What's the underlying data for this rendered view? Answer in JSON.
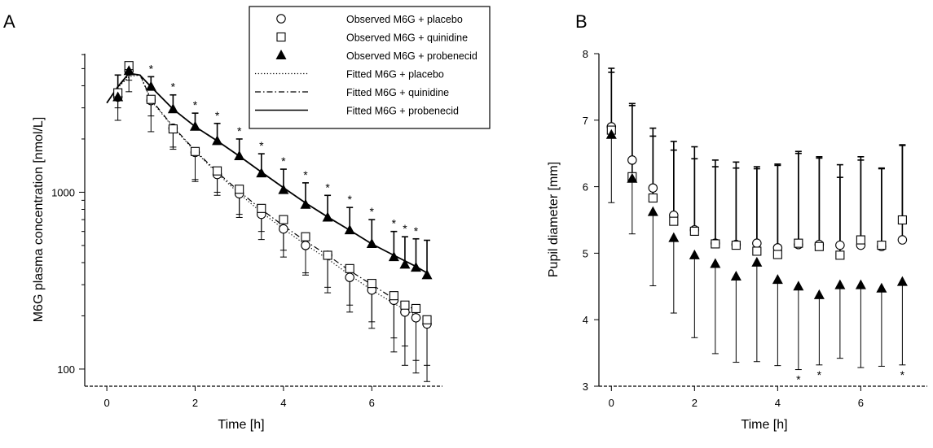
{
  "chart_data": [
    {
      "type": "scatter",
      "panel_label": "A",
      "xlabel": "Time [h]",
      "ylabel": "M6G  plasma  concentration  [nmol/L]",
      "xlim": [
        -0.5,
        7.6
      ],
      "ylim": [
        80,
        8000
      ],
      "yscale": "log",
      "xticks": [
        0,
        2,
        4,
        6
      ],
      "yticks": [
        100,
        1000
      ],
      "legend_position": "top",
      "legend": [
        "Observed  M6G + placebo",
        "Observed  M6G + quinidine",
        "Observed  M6G + probenecid",
        "Fitted M6G + placebo",
        "Fitted M6G + quinidine",
        "Fitted M6G + probenecid"
      ],
      "series": [
        {
          "marker": "circle",
          "x": [
            0.25,
            0.5,
            1.0,
            1.5,
            2.0,
            2.5,
            3.0,
            3.5,
            4.0,
            4.5,
            5.0,
            5.5,
            6.0,
            6.5,
            6.75,
            7.0,
            7.25
          ],
          "y": [
            3450,
            4850,
            3300,
            2300,
            1680,
            1260,
            980,
            750,
            620,
            500,
            440,
            330,
            280,
            245,
            210,
            195,
            180
          ],
          "err_low": [
            2550,
            3700,
            2200,
            1750,
            1180,
            960,
            720,
            540,
            430,
            340,
            290,
            230,
            185,
            150,
            135,
            112,
            105
          ]
        },
        {
          "marker": "square",
          "x": [
            0.25,
            0.5,
            1.0,
            1.5,
            2.0,
            2.5,
            3.0,
            3.5,
            4.0,
            4.5,
            5.0,
            5.5,
            6.0,
            6.5,
            6.75,
            7.0,
            7.25
          ],
          "y": [
            3650,
            5200,
            3350,
            2280,
            1700,
            1320,
            1040,
            810,
            700,
            560,
            440,
            370,
            305,
            260,
            230,
            220,
            190
          ],
          "err_low": [
            3000,
            4300,
            2700,
            1800,
            1150,
            1000,
            750,
            600,
            470,
            350,
            270,
            210,
            170,
            125,
            105,
            95,
            85
          ]
        },
        {
          "marker": "triangle",
          "x": [
            0.25,
            0.5,
            1.0,
            1.5,
            2.0,
            2.5,
            3.0,
            3.5,
            4.0,
            4.5,
            5.0,
            5.5,
            6.0,
            6.5,
            6.75,
            7.0,
            7.25
          ],
          "y": [
            3450,
            4850,
            3950,
            2950,
            2350,
            1950,
            1600,
            1280,
            1030,
            850,
            720,
            610,
            510,
            430,
            390,
            375,
            340
          ],
          "err_high": [
            4600,
            5300,
            4500,
            3550,
            2800,
            2450,
            2000,
            1650,
            1350,
            1130,
            960,
            820,
            700,
            600,
            560,
            545,
            535
          ],
          "significant": [
            false,
            false,
            true,
            true,
            true,
            true,
            true,
            true,
            true,
            true,
            true,
            true,
            true,
            true,
            true,
            true,
            false
          ]
        }
      ],
      "fitted": [
        {
          "style": "dotted",
          "x": [
            0,
            0.25,
            0.5,
            0.75,
            1.0,
            1.5,
            2.0,
            2.5,
            3.0,
            3.5,
            4.0,
            4.5,
            5.0,
            5.5,
            6.0,
            6.5,
            7.0
          ],
          "y": [
            3200,
            3900,
            4500,
            4600,
            3300,
            2330,
            1700,
            1280,
            980,
            770,
            620,
            505,
            420,
            340,
            280,
            235,
            200
          ]
        },
        {
          "style": "dash-dot",
          "x": [
            0,
            0.25,
            0.5,
            0.75,
            1.0,
            1.5,
            2.0,
            2.5,
            3.0,
            3.5,
            4.0,
            4.5,
            5.0,
            5.5,
            6.0,
            6.5,
            7.0
          ],
          "y": [
            3200,
            3950,
            4600,
            4650,
            3350,
            2350,
            1720,
            1300,
            1010,
            800,
            645,
            530,
            440,
            360,
            300,
            250,
            215
          ]
        },
        {
          "style": "solid",
          "x": [
            0,
            0.25,
            0.5,
            0.75,
            1.0,
            1.5,
            2.0,
            2.5,
            3.0,
            3.5,
            4.0,
            4.5,
            5.0,
            5.5,
            6.0,
            6.5,
            7.0,
            7.25
          ],
          "y": [
            3200,
            3950,
            4700,
            4600,
            3950,
            2950,
            2350,
            1950,
            1600,
            1300,
            1060,
            870,
            725,
            610,
            510,
            440,
            380,
            350
          ]
        }
      ],
      "annotation": "*"
    },
    {
      "type": "scatter",
      "panel_label": "B",
      "xlabel": "Time [h]",
      "ylabel": "Pupil diameter  [mm]",
      "xlim": [
        -0.3,
        7.6
      ],
      "ylim": [
        3,
        8
      ],
      "xticks": [
        0,
        2,
        4,
        6
      ],
      "yticks": [
        3,
        4,
        5,
        6,
        7,
        8
      ],
      "series": [
        {
          "marker": "circle",
          "x": [
            0,
            0.5,
            1.0,
            1.5,
            2.0,
            2.5,
            3.0,
            3.5,
            4.0,
            4.5,
            5.0,
            5.5,
            6.0,
            6.5,
            7.0
          ],
          "y": [
            6.9,
            6.4,
            5.98,
            5.57,
            5.35,
            5.15,
            5.13,
            5.15,
            5.08,
            5.13,
            5.13,
            5.12,
            5.12,
            5.1,
            5.2
          ],
          "err_high": [
            7.72,
            7.25,
            6.88,
            6.68,
            6.6,
            6.4,
            6.37,
            6.3,
            6.34,
            6.53,
            6.45,
            6.33,
            6.4,
            6.28,
            6.62
          ]
        },
        {
          "marker": "square",
          "x": [
            0,
            0.5,
            1.0,
            1.5,
            2.0,
            2.5,
            3.0,
            3.5,
            4.0,
            4.5,
            5.0,
            5.5,
            6.0,
            6.5,
            7.0
          ],
          "y": [
            6.85,
            6.15,
            5.83,
            5.48,
            5.33,
            5.14,
            5.12,
            5.03,
            4.98,
            5.15,
            5.1,
            4.97,
            5.2,
            5.12,
            5.5
          ],
          "err_high": [
            7.78,
            7.22,
            6.76,
            6.55,
            6.42,
            6.3,
            6.28,
            6.27,
            6.32,
            6.5,
            6.43,
            6.14,
            6.45,
            6.27,
            6.63
          ]
        },
        {
          "marker": "triangle",
          "x": [
            0,
            0.5,
            1.0,
            1.5,
            2.0,
            2.5,
            3.0,
            3.5,
            4.0,
            4.5,
            5.0,
            5.5,
            6.0,
            6.5,
            7.0
          ],
          "y": [
            6.78,
            6.12,
            5.62,
            5.23,
            4.97,
            4.84,
            4.65,
            4.86,
            4.6,
            4.5,
            4.37,
            4.52,
            4.52,
            4.47,
            4.57
          ],
          "err_low": [
            5.76,
            5.29,
            4.51,
            4.1,
            3.73,
            3.49,
            3.36,
            3.37,
            3.31,
            3.25,
            3.32,
            3.42,
            3.28,
            3.3,
            3.32
          ],
          "significant": [
            false,
            false,
            false,
            false,
            false,
            false,
            false,
            false,
            false,
            true,
            true,
            false,
            false,
            false,
            true
          ]
        }
      ],
      "annotation": "*"
    }
  ]
}
